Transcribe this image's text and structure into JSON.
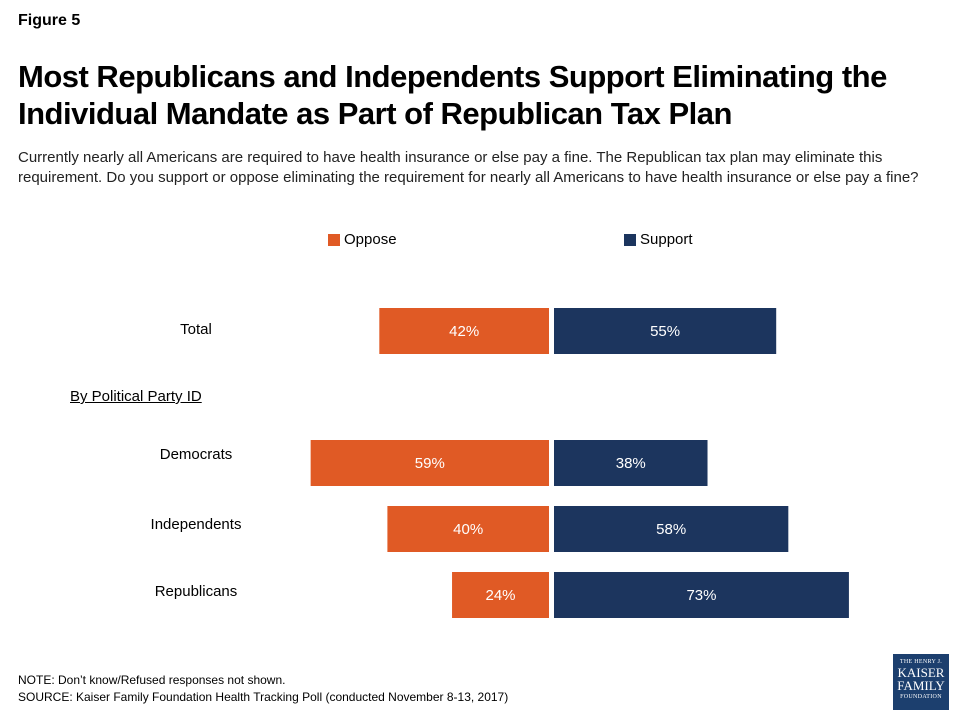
{
  "figure_label": "Figure 5",
  "title": "Most Republicans and Independents Support Eliminating the Individual Mandate as Part of Republican Tax Plan",
  "subtitle": "Currently nearly all Americans are required to have health insurance or else pay a fine. The Republican tax plan may eliminate this requirement. Do you support or oppose eliminating the requirement for nearly all Americans to have health insurance or else pay a fine?",
  "section_label": "By Political Party ID",
  "note": "NOTE: Don’t know/Refused responses not shown.",
  "source": "SOURCE: Kaiser Family Foundation Health Tracking Poll (conducted November 8-13, 2017)",
  "logo": {
    "line1": "THE HENRY J.",
    "line2": "KAISER",
    "line3": "FAMILY",
    "line4": "FOUNDATION"
  },
  "colors": {
    "oppose": "#e05a25",
    "support": "#1c355e"
  },
  "chart_data": {
    "type": "bar",
    "orientation": "horizontal-diverging",
    "categories": [
      "Total",
      "Democrats",
      "Independents",
      "Republicans"
    ],
    "series": [
      {
        "name": "Oppose",
        "values": [
          42,
          59,
          40,
          24
        ],
        "labels": [
          "42%",
          "59%",
          "40%",
          "24%"
        ]
      },
      {
        "name": "Support",
        "values": [
          55,
          38,
          58,
          73
        ],
        "labels": [
          "55%",
          "38%",
          "58%",
          "73%"
        ]
      }
    ],
    "unit": "%",
    "legend": "top"
  }
}
